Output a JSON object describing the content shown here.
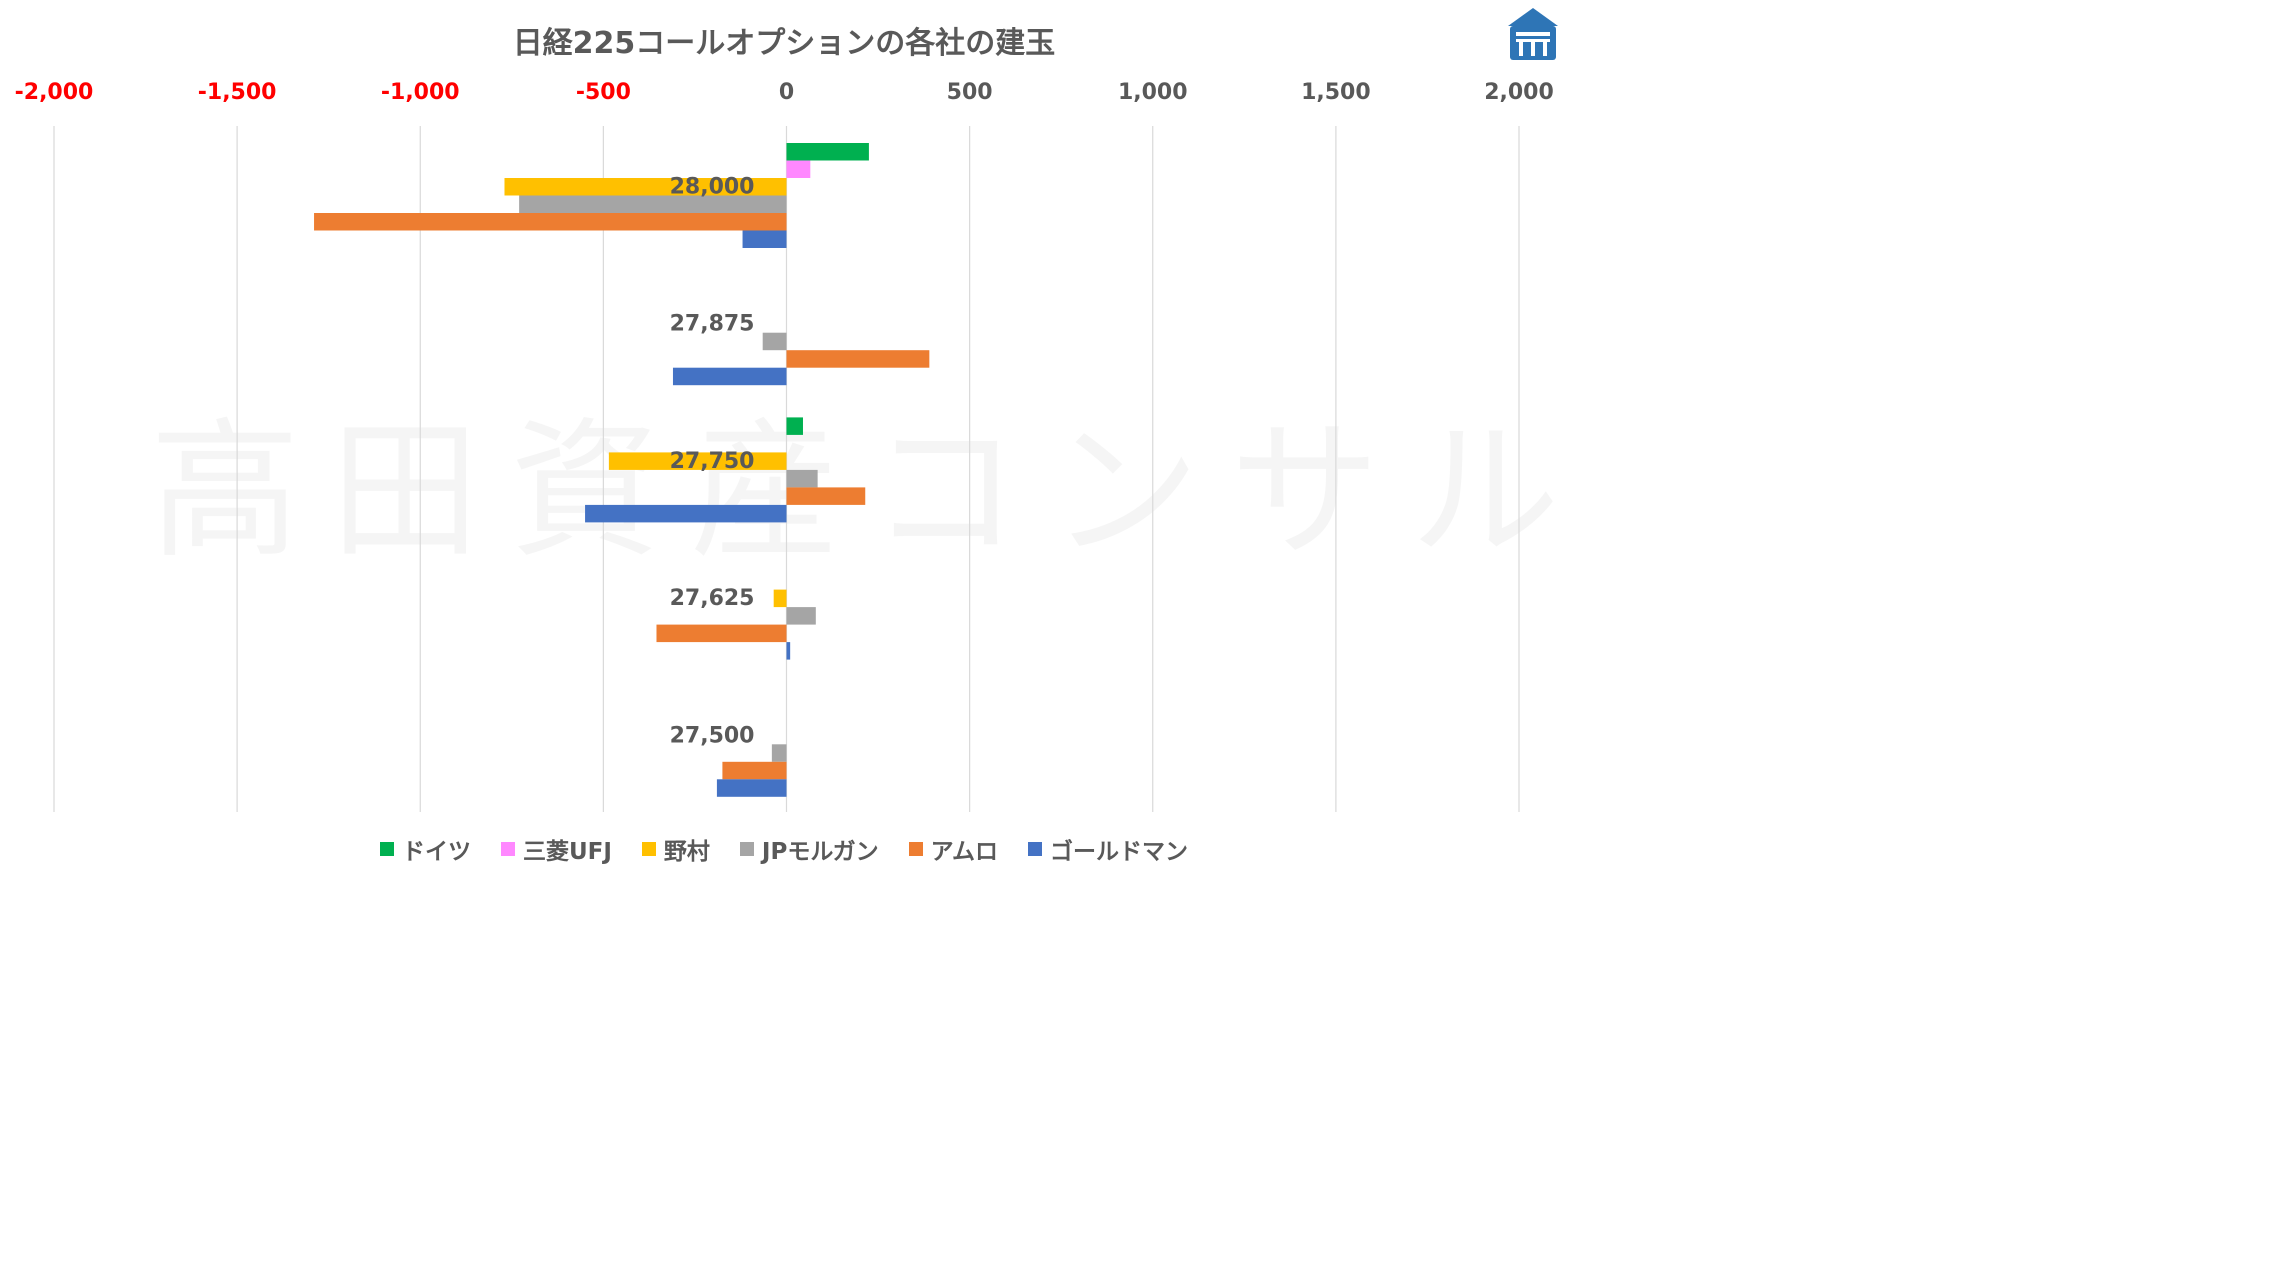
{
  "watermark": "高田資産コンサル",
  "chart_data": {
    "type": "bar",
    "orientation": "horizontal",
    "title": "日経225コールオプションの各社の建玉",
    "xlabel": "",
    "ylabel": "",
    "xlim": [
      -2000,
      2000
    ],
    "x_ticks": [
      -2000,
      -1500,
      -1000,
      -500,
      0,
      500,
      1000,
      1500,
      2000
    ],
    "x_tick_labels": [
      "-2,000",
      "-1,500",
      "-1,000",
      "-500",
      "0",
      "500",
      "1,000",
      "1,500",
      "2,000"
    ],
    "negative_tick_color": "#ff0000",
    "tick_color": "#595959",
    "x_axis_position": "top",
    "grid": true,
    "legend_position": "bottom",
    "categories": [
      "28,000",
      "27,875",
      "27,750",
      "27,625",
      "27,500"
    ],
    "series": [
      {
        "name": "ドイツ",
        "color": "#00b050",
        "values": [
          225,
          0,
          45,
          0,
          0
        ]
      },
      {
        "name": "三菱UFJ",
        "color": "#ff88ff",
        "values": [
          65,
          0,
          0,
          0,
          0
        ]
      },
      {
        "name": "野村",
        "color": "#ffc000",
        "values": [
          -770,
          0,
          -485,
          -35,
          0
        ]
      },
      {
        "name": "JPモルガン",
        "color": "#a5a5a5",
        "values": [
          -730,
          -65,
          85,
          80,
          -40
        ]
      },
      {
        "name": "アムロ",
        "color": "#ed7d31",
        "values": [
          -1290,
          390,
          215,
          -355,
          -175
        ]
      },
      {
        "name": "ゴールドマン",
        "color": "#4472c4",
        "values": [
          -120,
          -310,
          -550,
          10,
          -190
        ]
      }
    ]
  }
}
